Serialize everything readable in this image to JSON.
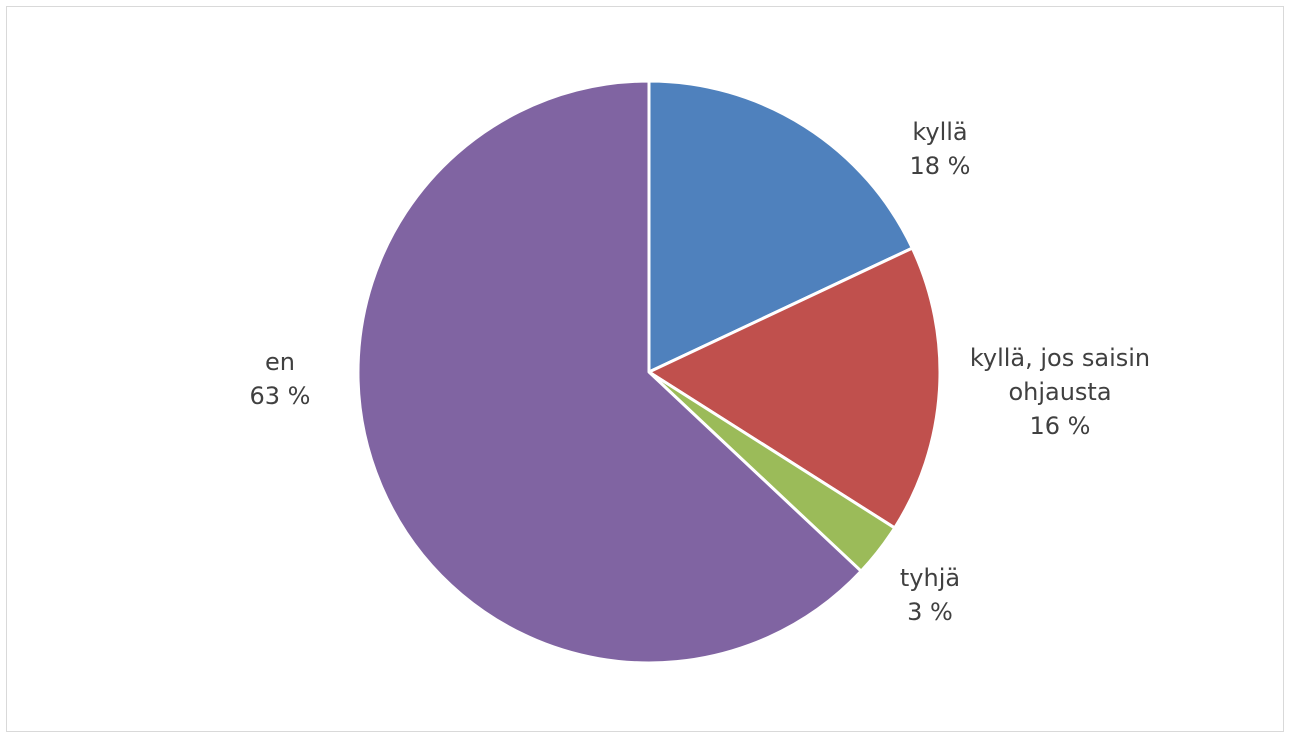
{
  "chart_data": {
    "type": "pie",
    "title": "",
    "start_angle_deg": 0,
    "direction": "clockwise",
    "legend": "none",
    "slices": [
      {
        "label": "kyllä",
        "value": 18,
        "value_text": "18 %",
        "color": "#4f81bd",
        "label_lines": [
          "kyllä"
        ]
      },
      {
        "label": "kyllä, jos saisin ohjausta",
        "value": 16,
        "value_text": "16 %",
        "color": "#c0504d",
        "label_lines": [
          "kyllä, jos saisin",
          "ohjausta"
        ]
      },
      {
        "label": "tyhjä",
        "value": 3,
        "value_text": "3 %",
        "color": "#9bbb59",
        "label_lines": [
          "tyhjä"
        ]
      },
      {
        "label": "en",
        "value": 63,
        "value_text": "63 %",
        "color": "#8064a2",
        "label_lines": [
          "en"
        ]
      }
    ]
  }
}
